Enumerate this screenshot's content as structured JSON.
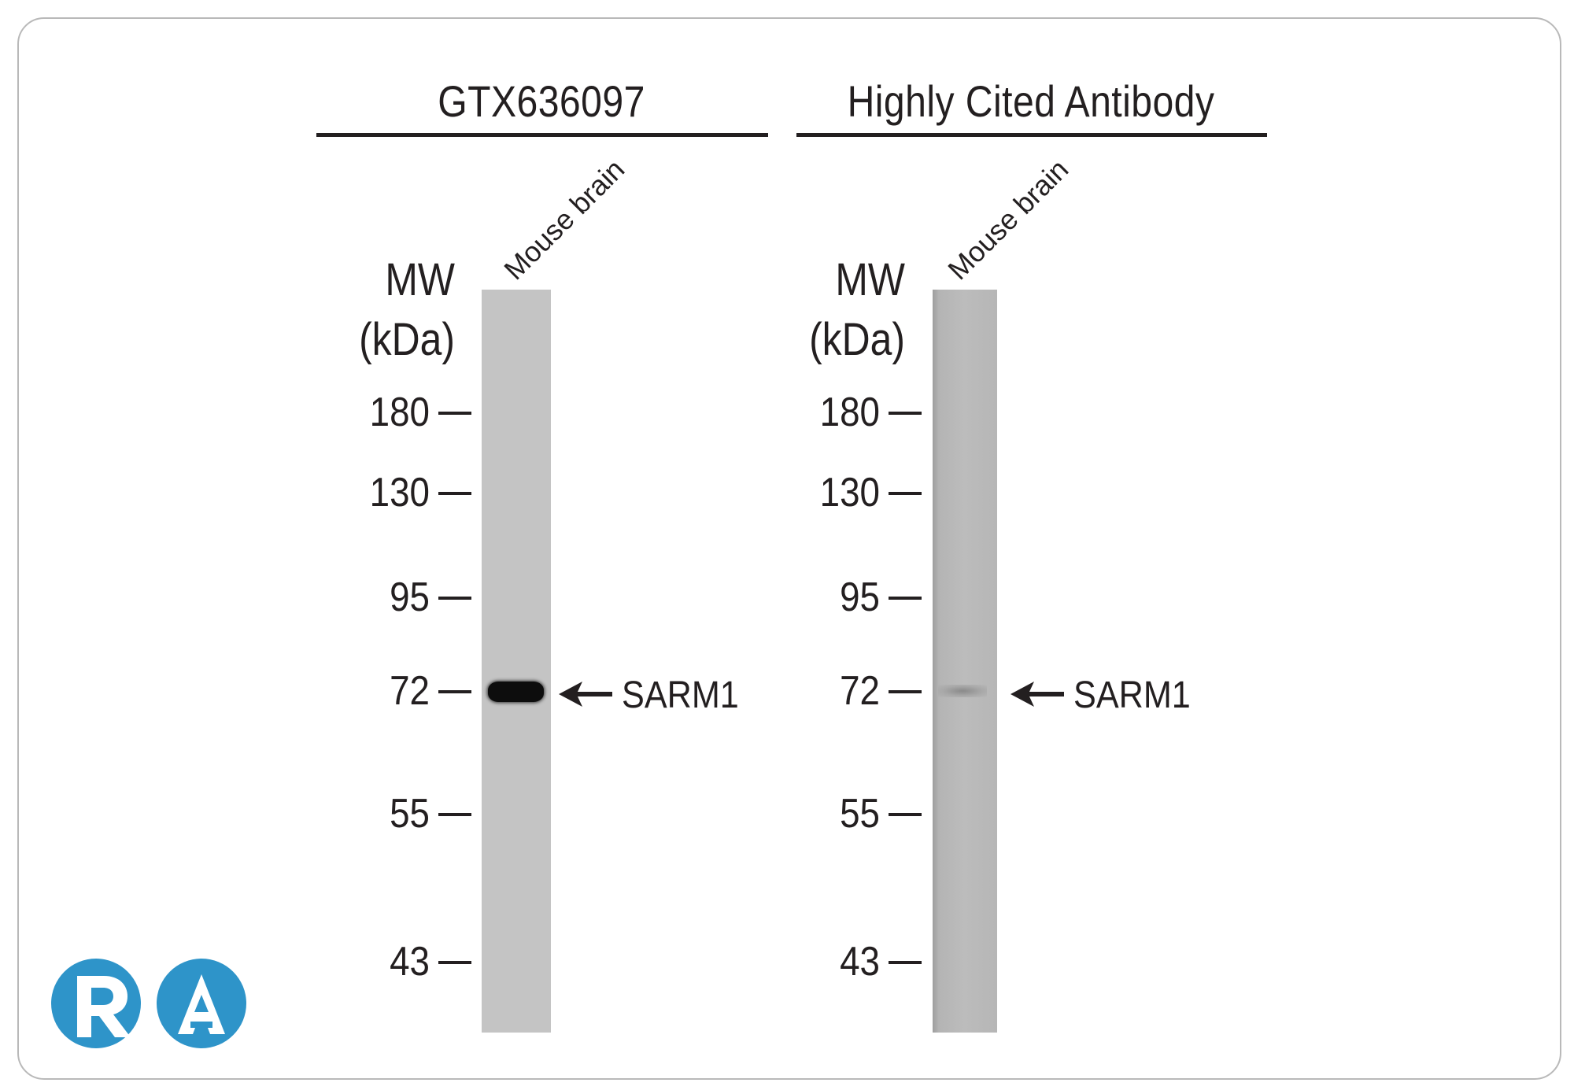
{
  "panels": [
    {
      "title": "GTX636097",
      "lane_label": "Mouse brain",
      "mw_title_line1": "MW",
      "mw_title_line2": "(kDa)",
      "markers": [
        "180",
        "130",
        "95",
        "72",
        "55",
        "43"
      ],
      "target_label": "SARM1",
      "lane_color": "#c4c4c4",
      "band_color": "#0d0d0d"
    },
    {
      "title": "Highly Cited Antibody",
      "lane_label": "Mouse brain",
      "mw_title_line1": "MW",
      "mw_title_line2": "(kDa)",
      "markers": [
        "180",
        "130",
        "95",
        "72",
        "55",
        "43"
      ],
      "target_label": "SARM1",
      "lane_color": "#b9b9b9",
      "band_color": "#8a8a8a"
    }
  ],
  "logo": {
    "letters": "RA",
    "color": "#2e94c9",
    "icon": "ra-logo-icon"
  }
}
